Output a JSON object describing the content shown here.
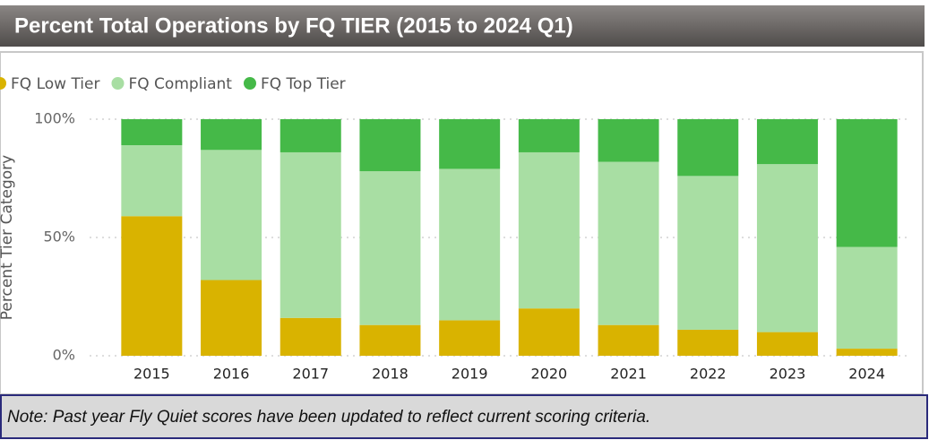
{
  "chart_data": {
    "type": "stacked_bar",
    "title": "Percent Total Operations by FQ TIER (2015 to 2024 Q1)",
    "y_label": "Percent Tier Category",
    "note": "Note: Past year Fly Quiet scores have been updated to reflect current scoring criteria.",
    "categories": [
      "2015",
      "2016",
      "2017",
      "2018",
      "2019",
      "2020",
      "2021",
      "2022",
      "2023",
      "2024"
    ],
    "series": [
      {
        "name": "FQ Low Tier",
        "color": "#d9b300",
        "values": [
          59,
          32,
          16,
          13,
          15,
          20,
          13,
          11,
          10,
          3
        ]
      },
      {
        "name": "FQ Compliant",
        "color": "#a8dea3",
        "values": [
          30,
          55,
          70,
          65,
          64,
          66,
          69,
          65,
          71,
          43
        ]
      },
      {
        "name": "FQ Top Tier",
        "color": "#45b948",
        "values": [
          11,
          13,
          14,
          22,
          21,
          14,
          18,
          24,
          19,
          54
        ]
      }
    ],
    "ylim": [
      0,
      100
    ],
    "yticks": [
      {
        "value": 0,
        "label": "0%"
      },
      {
        "value": 50,
        "label": "50%"
      },
      {
        "value": 100,
        "label": "100%"
      }
    ],
    "grid": true,
    "legend": "top-left"
  }
}
